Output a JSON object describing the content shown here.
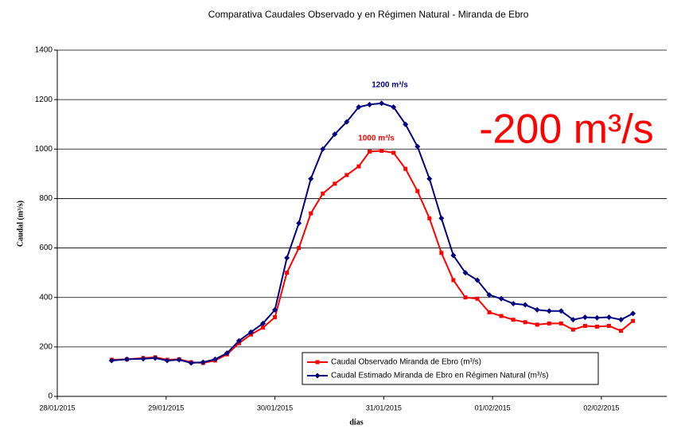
{
  "chart_data": {
    "type": "line",
    "title": "Comparativa Caudales Observado y en Régimen Natural - Miranda de Ebro",
    "xlabel": "días",
    "ylabel": "Caudal (m³/s)",
    "annotations": [
      "1200 m³/s",
      "1000 m³/s",
      "-200 m³/s"
    ],
    "x": [
      0.5,
      0.64,
      0.79,
      0.9,
      1.01,
      1.12,
      1.23,
      1.34,
      1.45,
      1.56,
      1.67,
      1.78,
      1.89,
      2.0,
      2.11,
      2.22,
      2.33,
      2.44,
      2.55,
      2.66,
      2.77,
      2.87,
      2.98,
      3.09,
      3.2,
      3.31,
      3.42,
      3.53,
      3.64,
      3.75,
      3.86,
      3.97,
      4.08,
      4.19,
      4.3,
      4.41,
      4.52,
      4.63,
      4.74,
      4.85,
      4.96,
      5.07,
      5.18,
      5.29
    ],
    "series": [
      {
        "name": "Caudal Observado Miranda de Ebro (m³/s)",
        "color": "#ff0000",
        "marker": "square",
        "values": [
          148,
          150,
          155,
          158,
          148,
          150,
          138,
          135,
          145,
          170,
          215,
          250,
          278,
          320,
          500,
          600,
          740,
          820,
          860,
          895,
          930,
          990,
          993,
          985,
          920,
          830,
          720,
          580,
          470,
          400,
          395,
          340,
          325,
          310,
          300,
          290,
          295,
          295,
          270,
          285,
          282,
          285,
          265,
          305
        ]
      },
      {
        "name": "Caudal Estimado Miranda de Ebro en Régimen Natural (m³/s)",
        "color": "#000080",
        "marker": "diamond",
        "values": [
          145,
          150,
          152,
          155,
          145,
          148,
          135,
          138,
          150,
          175,
          225,
          260,
          295,
          350,
          560,
          700,
          880,
          1000,
          1060,
          1110,
          1170,
          1180,
          1185,
          1170,
          1100,
          1010,
          880,
          720,
          570,
          500,
          470,
          410,
          395,
          375,
          370,
          350,
          345,
          345,
          310,
          320,
          318,
          320,
          310,
          335
        ]
      }
    ],
    "xlim": [
      0,
      5.6
    ],
    "xticks": [
      {
        "value": 0,
        "label": "28/01/2015"
      },
      {
        "value": 1,
        "label": "29/01/2015"
      },
      {
        "value": 2,
        "label": "30/01/2015"
      },
      {
        "value": 3,
        "label": "31/01/2015"
      },
      {
        "value": 4,
        "label": "01/02/2015"
      },
      {
        "value": 5,
        "label": "02/02/2015"
      }
    ],
    "ylim": [
      0,
      1400
    ],
    "yticks": [
      0,
      200,
      400,
      600,
      800,
      1000,
      1200,
      1400
    ],
    "grid": true
  }
}
